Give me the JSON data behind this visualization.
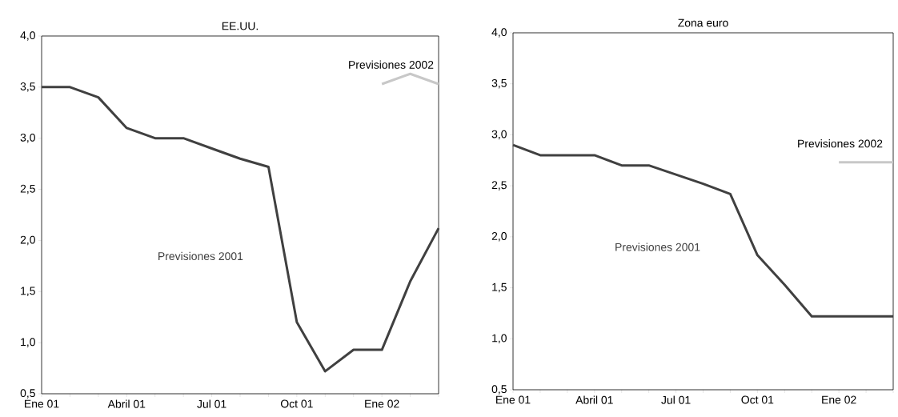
{
  "chart_data": [
    {
      "type": "line",
      "title": "EE.UU.",
      "ylim": [
        0.5,
        4.0
      ],
      "categories": [
        "Ene 01",
        null,
        null,
        "Abril 01",
        null,
        null,
        "Jul 01",
        null,
        null,
        "Oct 01",
        null,
        null,
        "Ene 02",
        null,
        null
      ],
      "yticks": [
        {
          "value": 0.5,
          "label": "0,5"
        },
        {
          "value": 1.0,
          "label": "1,0"
        },
        {
          "value": 1.5,
          "label": "1,5"
        },
        {
          "value": 2.0,
          "label": "2,0"
        },
        {
          "value": 2.5,
          "label": "2,5"
        },
        {
          "value": 3.0,
          "label": "3,0"
        },
        {
          "value": 3.5,
          "label": "3,5"
        },
        {
          "value": 4.0,
          "label": "4,0"
        }
      ],
      "series": [
        {
          "name": "Previsiones 2001",
          "color": "#404040",
          "values": [
            3.5,
            3.5,
            3.4,
            3.1,
            3.0,
            3.0,
            2.9,
            2.8,
            2.72,
            1.2,
            0.72,
            0.93,
            0.93,
            1.6,
            2.12
          ]
        },
        {
          "name": "Previsiones 2002",
          "color": "#c8c8c8",
          "values": [
            null,
            null,
            null,
            null,
            null,
            null,
            null,
            null,
            null,
            null,
            null,
            null,
            3.53,
            3.63,
            3.53
          ]
        }
      ]
    },
    {
      "type": "line",
      "title": "Zona euro",
      "ylim": [
        0.5,
        4.0
      ],
      "categories": [
        "Ene 01",
        null,
        null,
        "Abril 01",
        null,
        null,
        "Jul 01",
        null,
        null,
        "Oct 01",
        null,
        null,
        "Ene 02",
        null,
        null
      ],
      "yticks": [
        {
          "value": 0.5,
          "label": "0,5"
        },
        {
          "value": 1.0,
          "label": "1,0"
        },
        {
          "value": 1.5,
          "label": "1,5"
        },
        {
          "value": 2.0,
          "label": "2,0"
        },
        {
          "value": 2.5,
          "label": "2,5"
        },
        {
          "value": 3.0,
          "label": "3,0"
        },
        {
          "value": 3.5,
          "label": "3,5"
        },
        {
          "value": 4.0,
          "label": "4,0"
        }
      ],
      "series": [
        {
          "name": "Previsiones 2001",
          "color": "#404040",
          "values": [
            2.9,
            2.8,
            2.8,
            2.8,
            2.7,
            2.7,
            2.61,
            2.52,
            2.42,
            1.82,
            1.53,
            1.22,
            1.22,
            1.22,
            1.22
          ]
        },
        {
          "name": "Previsiones 2002",
          "color": "#c8c8c8",
          "values": [
            null,
            null,
            null,
            null,
            null,
            null,
            null,
            null,
            null,
            null,
            null,
            null,
            2.73,
            2.73,
            2.73
          ]
        }
      ]
    }
  ]
}
